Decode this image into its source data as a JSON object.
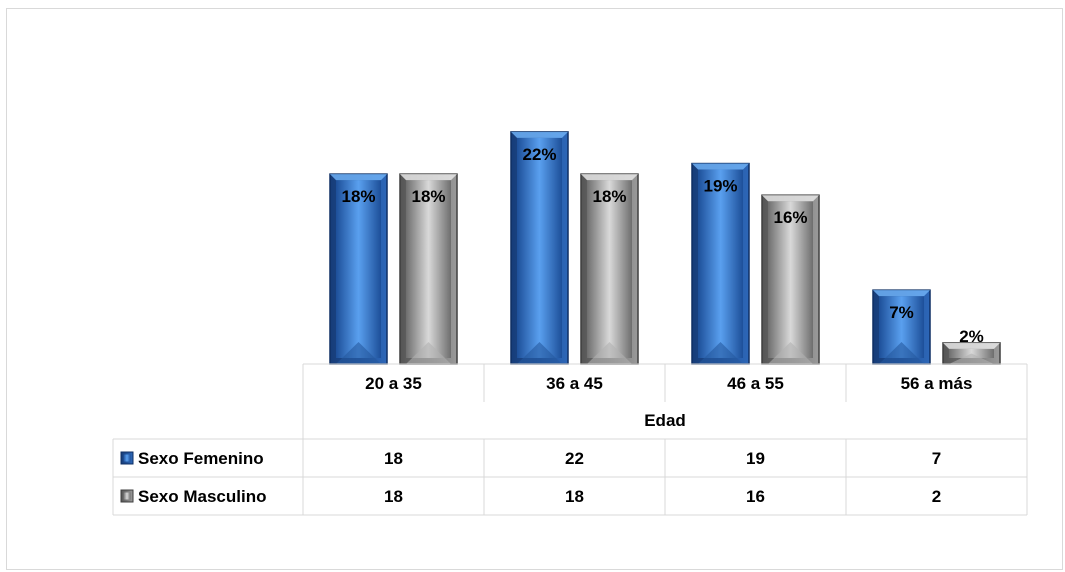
{
  "chart_data": {
    "type": "bar",
    "xlabel": "Edad",
    "categories": [
      "20 a 35",
      "36 a 45",
      "46 a 55",
      "56 a más"
    ],
    "series": [
      {
        "name": "Sexo Femenino",
        "color": "#2e6fc7",
        "values": [
          18,
          22,
          19,
          7
        ],
        "percent_labels": [
          "18%",
          "22%",
          "19%",
          "7%"
        ]
      },
      {
        "name": "Sexo Masculino",
        "color": "#9a9a9a",
        "values": [
          18,
          18,
          16,
          2
        ],
        "percent_labels": [
          "18%",
          "18%",
          "16%",
          "2%"
        ]
      }
    ],
    "ylim": [
      0,
      22
    ],
    "grid": false,
    "legend": "data-table"
  }
}
